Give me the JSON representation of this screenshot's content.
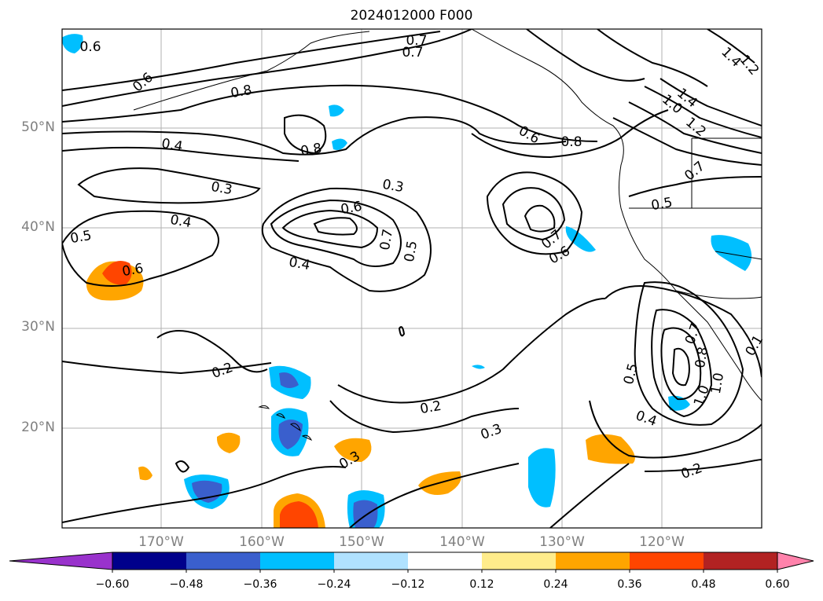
{
  "title": "2024012000 F000",
  "lat_labels": [
    "50°N",
    "40°N",
    "30°N",
    "20°N"
  ],
  "lon_labels": [
    "170°W",
    "160°W",
    "150°W",
    "140°W",
    "130°W",
    "120°W"
  ],
  "colorbar": {
    "ticks": [
      "−0.60",
      "−0.48",
      "−0.36",
      "−0.24",
      "−0.12",
      "0.12",
      "0.24",
      "0.36",
      "0.48",
      "0.60"
    ],
    "colors": [
      "#9932cc",
      "#00008b",
      "#3a5fcd",
      "#00bfff",
      "#b0e2ff",
      "#ffffff",
      "#ffec8b",
      "#ffa500",
      "#ff4500",
      "#b22222",
      "#ff82ab"
    ]
  },
  "contour_labels": [
    "0.6",
    "0.7",
    "0.6",
    "0.7",
    "0.8",
    "0.4",
    "0.3",
    "0.8",
    "0.4",
    "0.5",
    "0.6",
    "0.6",
    "0.3",
    "0.7",
    "0.5",
    "0.4",
    "0.6",
    "0.7",
    "0.6",
    "0.8",
    "1.4",
    "1.0",
    "1.2",
    "1.4",
    "1.2",
    "0.7",
    "0.5",
    "0.2",
    "0.2",
    "0.3",
    "0.3",
    "0.5",
    "0.4",
    "0.2",
    "0.8",
    "1.0",
    "1.0",
    "0.7",
    "0.1"
  ]
}
